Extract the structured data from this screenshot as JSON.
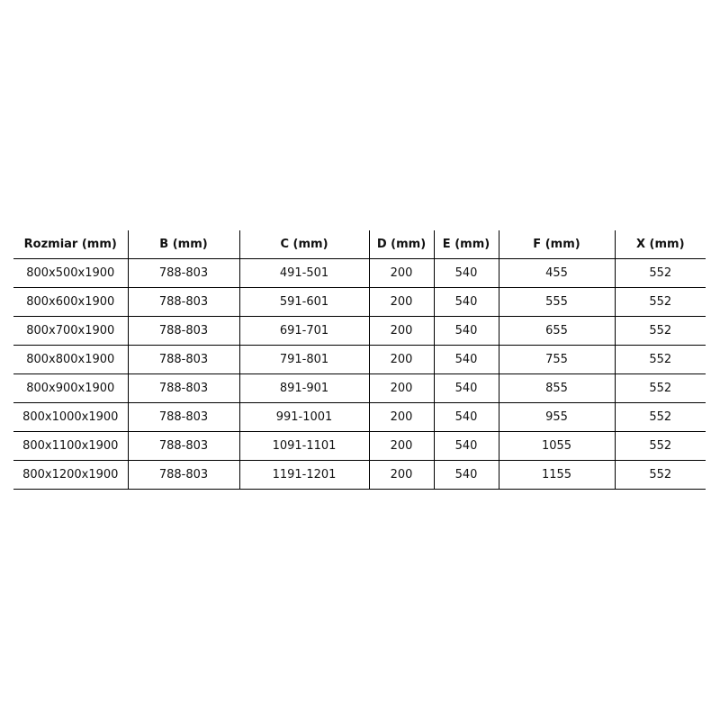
{
  "headers": [
    "Rozmiar (mm)",
    "B (mm)",
    "C (mm)",
    "D (mm)",
    "E (mm)",
    "F (mm)",
    "X (mm)"
  ],
  "rows": [
    [
      "800x500x1900",
      "788-803",
      "491-501",
      "200",
      "540",
      "455",
      "552"
    ],
    [
      "800x600x1900",
      "788-803",
      "591-601",
      "200",
      "540",
      "555",
      "552"
    ],
    [
      "800x700x1900",
      "788-803",
      "691-701",
      "200",
      "540",
      "655",
      "552"
    ],
    [
      "800x800x1900",
      "788-803",
      "791-801",
      "200",
      "540",
      "755",
      "552"
    ],
    [
      "800x900x1900",
      "788-803",
      "891-901",
      "200",
      "540",
      "855",
      "552"
    ],
    [
      "800x1000x1900",
      "788-803",
      "991-1001",
      "200",
      "540",
      "955",
      "552"
    ],
    [
      "800x1100x1900",
      "788-803",
      "1091-1101",
      "200",
      "540",
      "1055",
      "552"
    ],
    [
      "800x1200x1900",
      "788-803",
      "1191-1201",
      "200",
      "540",
      "1155",
      "552"
    ]
  ]
}
